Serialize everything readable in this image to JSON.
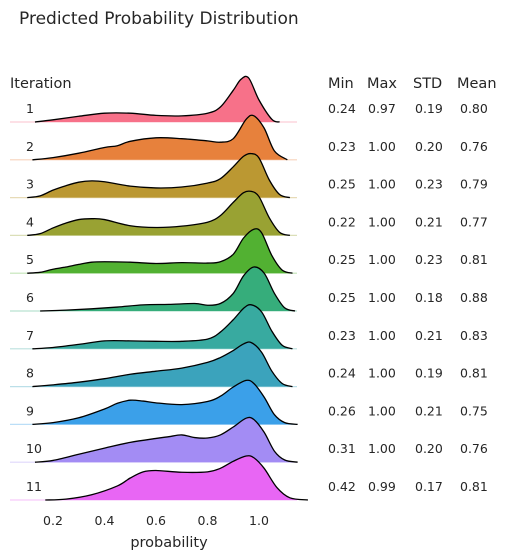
{
  "chart_data": {
    "type": "area",
    "subtype": "ridgeline",
    "title": "Predicted Probability Distribution",
    "xlabel": "probability",
    "row_header": "Iteration",
    "stat_headers": [
      "Min",
      "Max",
      "STD",
      "Mean"
    ],
    "x_ticks": [
      "0.2",
      "0.4",
      "0.6",
      "0.8",
      "1.0"
    ],
    "xlim": [
      0.07,
      1.24
    ],
    "grid": false,
    "legend": "none",
    "series": [
      {
        "name": "1",
        "color": "#f77189",
        "min": 0.24,
        "max": 0.97,
        "std": 0.19,
        "mean": 0.8,
        "stats": [
          "0.24",
          "0.97",
          "0.19",
          "0.80"
        ],
        "x": [
          0.13,
          0.2,
          0.3,
          0.4,
          0.5,
          0.6,
          0.7,
          0.8,
          0.85,
          0.9,
          0.93,
          0.96,
          1.0,
          1.05,
          1.08
        ],
        "density": [
          0.0,
          0.05,
          0.13,
          0.2,
          0.2,
          0.15,
          0.14,
          0.2,
          0.34,
          0.72,
          0.97,
          1.0,
          0.5,
          0.06,
          0.0
        ]
      },
      {
        "name": "2",
        "color": "#e7813c",
        "min": 0.23,
        "max": 1.0,
        "std": 0.2,
        "mean": 0.76,
        "stats": [
          "0.23",
          "1.00",
          "0.20",
          "0.76"
        ],
        "x": [
          0.12,
          0.2,
          0.3,
          0.4,
          0.45,
          0.5,
          0.6,
          0.7,
          0.8,
          0.85,
          0.9,
          0.95,
          0.98,
          1.02,
          1.06,
          1.11
        ],
        "density": [
          0.0,
          0.05,
          0.15,
          0.28,
          0.32,
          0.42,
          0.5,
          0.48,
          0.43,
          0.4,
          0.48,
          0.92,
          1.0,
          0.72,
          0.2,
          0.0
        ]
      },
      {
        "name": "3",
        "color": "#bb9832",
        "min": 0.25,
        "max": 1.0,
        "std": 0.23,
        "mean": 0.79,
        "stats": [
          "0.25",
          "1.00",
          "0.23",
          "0.79"
        ],
        "x": [
          0.1,
          0.15,
          0.2,
          0.25,
          0.3,
          0.35,
          0.4,
          0.5,
          0.6,
          0.7,
          0.8,
          0.85,
          0.9,
          0.94,
          0.97,
          1.0,
          1.04,
          1.08,
          1.12
        ],
        "density": [
          0.0,
          0.04,
          0.17,
          0.27,
          0.35,
          0.38,
          0.36,
          0.26,
          0.22,
          0.24,
          0.33,
          0.43,
          0.7,
          0.94,
          1.0,
          0.9,
          0.4,
          0.07,
          0.0
        ]
      },
      {
        "name": "4",
        "color": "#99a233",
        "min": 0.22,
        "max": 1.0,
        "std": 0.21,
        "mean": 0.77,
        "stats": [
          "0.22",
          "1.00",
          "0.21",
          "0.77"
        ],
        "x": [
          0.1,
          0.15,
          0.2,
          0.25,
          0.3,
          0.35,
          0.4,
          0.5,
          0.6,
          0.7,
          0.8,
          0.85,
          0.9,
          0.94,
          0.97,
          1.0,
          1.04,
          1.08,
          1.12
        ],
        "density": [
          0.0,
          0.04,
          0.17,
          0.28,
          0.36,
          0.38,
          0.36,
          0.22,
          0.18,
          0.21,
          0.3,
          0.45,
          0.75,
          0.97,
          1.0,
          0.88,
          0.4,
          0.07,
          0.0
        ]
      },
      {
        "name": "5",
        "color": "#52b132",
        "min": 0.25,
        "max": 1.0,
        "std": 0.23,
        "mean": 0.81,
        "stats": [
          "0.25",
          "1.00",
          "0.23",
          "0.81"
        ],
        "x": [
          0.1,
          0.15,
          0.2,
          0.25,
          0.3,
          0.35,
          0.4,
          0.5,
          0.6,
          0.7,
          0.8,
          0.85,
          0.9,
          0.94,
          0.98,
          1.01,
          1.05,
          1.09,
          1.13
        ],
        "density": [
          0.0,
          0.02,
          0.09,
          0.14,
          0.2,
          0.25,
          0.26,
          0.25,
          0.22,
          0.24,
          0.23,
          0.26,
          0.43,
          0.8,
          1.0,
          0.92,
          0.4,
          0.07,
          0.0
        ]
      },
      {
        "name": "6",
        "color": "#36ad7b",
        "min": 0.25,
        "max": 1.0,
        "std": 0.18,
        "mean": 0.88,
        "stats": [
          "0.25",
          "1.00",
          "0.18",
          "0.88"
        ],
        "x": [
          0.15,
          0.25,
          0.35,
          0.45,
          0.55,
          0.65,
          0.75,
          0.8,
          0.85,
          0.9,
          0.94,
          0.98,
          1.02,
          1.06,
          1.1,
          1.14
        ],
        "density": [
          0.0,
          0.02,
          0.05,
          0.09,
          0.14,
          0.15,
          0.17,
          0.13,
          0.17,
          0.4,
          0.8,
          1.0,
          0.86,
          0.4,
          0.07,
          0.0
        ]
      },
      {
        "name": "7",
        "color": "#38aaa0",
        "min": 0.23,
        "max": 1.0,
        "std": 0.21,
        "mean": 0.83,
        "stats": [
          "0.23",
          "1.00",
          "0.21",
          "0.83"
        ],
        "x": [
          0.12,
          0.2,
          0.3,
          0.4,
          0.5,
          0.6,
          0.7,
          0.8,
          0.85,
          0.9,
          0.94,
          0.97,
          1.01,
          1.05,
          1.09,
          1.13
        ],
        "density": [
          0.0,
          0.03,
          0.1,
          0.18,
          0.18,
          0.17,
          0.17,
          0.22,
          0.38,
          0.66,
          0.92,
          1.0,
          0.84,
          0.4,
          0.08,
          0.0
        ]
      },
      {
        "name": "8",
        "color": "#3ba3bc",
        "min": 0.24,
        "max": 1.0,
        "std": 0.19,
        "mean": 0.81,
        "stats": [
          "0.24",
          "1.00",
          "0.19",
          "0.81"
        ],
        "x": [
          0.12,
          0.2,
          0.3,
          0.4,
          0.5,
          0.6,
          0.7,
          0.8,
          0.85,
          0.9,
          0.94,
          0.97,
          1.01,
          1.05,
          1.09,
          1.13
        ],
        "density": [
          0.0,
          0.04,
          0.1,
          0.18,
          0.28,
          0.35,
          0.42,
          0.55,
          0.66,
          0.82,
          0.97,
          1.0,
          0.78,
          0.35,
          0.07,
          0.0
        ]
      },
      {
        "name": "9",
        "color": "#3ba0e9",
        "min": 0.26,
        "max": 1.0,
        "std": 0.21,
        "mean": 0.75,
        "stats": [
          "0.26",
          "1.00",
          "0.21",
          "0.75"
        ],
        "x": [
          0.12,
          0.2,
          0.3,
          0.4,
          0.45,
          0.5,
          0.55,
          0.6,
          0.7,
          0.8,
          0.85,
          0.9,
          0.95,
          0.98,
          1.02,
          1.06,
          1.1,
          1.15
        ],
        "density": [
          0.0,
          0.04,
          0.15,
          0.35,
          0.48,
          0.55,
          0.53,
          0.49,
          0.45,
          0.52,
          0.64,
          0.85,
          1.0,
          0.93,
          0.62,
          0.22,
          0.04,
          0.0
        ]
      },
      {
        "name": "10",
        "color": "#a38cf4",
        "min": 0.31,
        "max": 1.0,
        "std": 0.2,
        "mean": 0.76,
        "stats": [
          "0.31",
          "1.00",
          "0.20",
          "0.76"
        ],
        "x": [
          0.13,
          0.2,
          0.3,
          0.4,
          0.5,
          0.6,
          0.65,
          0.7,
          0.75,
          0.8,
          0.85,
          0.9,
          0.95,
          0.98,
          1.02,
          1.06,
          1.1,
          1.15
        ],
        "density": [
          0.0,
          0.04,
          0.18,
          0.32,
          0.45,
          0.54,
          0.58,
          0.62,
          0.56,
          0.55,
          0.62,
          0.8,
          1.0,
          0.97,
          0.68,
          0.25,
          0.05,
          0.0
        ]
      },
      {
        "name": "11",
        "color": "#e866f4",
        "min": 0.42,
        "max": 0.99,
        "std": 0.17,
        "mean": 0.81,
        "stats": [
          "0.42",
          "0.99",
          "0.17",
          "0.81"
        ],
        "x": [
          0.17,
          0.25,
          0.35,
          0.45,
          0.5,
          0.55,
          0.6,
          0.7,
          0.8,
          0.85,
          0.9,
          0.95,
          0.98,
          1.02,
          1.07,
          1.12,
          1.19
        ],
        "density": [
          0.0,
          0.02,
          0.12,
          0.32,
          0.5,
          0.64,
          0.67,
          0.63,
          0.64,
          0.72,
          0.88,
          1.0,
          0.96,
          0.72,
          0.28,
          0.05,
          0.0
        ]
      }
    ]
  }
}
